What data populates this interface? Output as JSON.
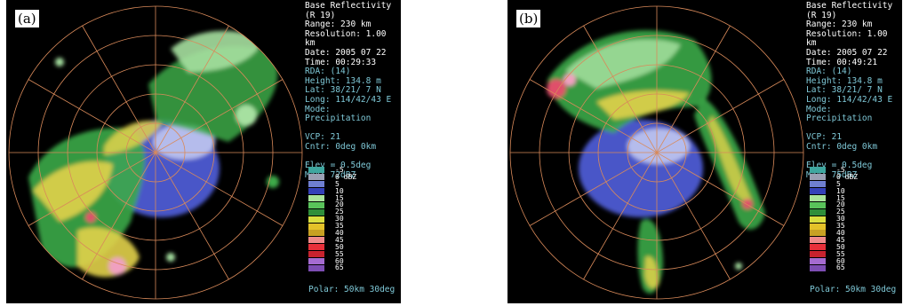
{
  "panels": [
    {
      "tag": "(a)",
      "lines": [
        "Base Reflectivity",
        "(R 19)",
        "Range: 230 km",
        "Resolution: 1.00 km",
        "Date: 2005 07 22",
        "Time: 00:29:33"
      ],
      "site": [
        "RDA: (14)",
        "Height: 134.8 m",
        "Lat: 38/21/ 7 N",
        "Long: 114/42/43 E",
        "Mode: Precipitation"
      ],
      "vcp": [
        "VCP: 21",
        "Cntr: 0deg 0km"
      ],
      "elev": [
        "Elev = 0.5deg",
        "Max: 72dBZ"
      ],
      "polar": "Polar: 50km 30deg"
    },
    {
      "tag": "(b)",
      "lines": [
        "Base Reflectivity",
        "(R 19)",
        "Range: 230 km",
        "Resolution: 1.00 km",
        "Date: 2005 07 22",
        "Time: 00:49:21"
      ],
      "site": [
        "RDA: (14)",
        "Height: 134.8 m",
        "Lat: 38/21/ 7 N",
        "Long: 114/42/43 E",
        "Mode: Precipitation"
      ],
      "vcp": [
        "VCP: 21",
        "Cntr: 0deg 0km"
      ],
      "elev": [
        "Elev = 0.5deg",
        "Max: 75dBZ"
      ],
      "polar": "Polar: 50km 30deg"
    }
  ],
  "legend": {
    "labels": [
      "-5",
      "0 dBZ",
      "5",
      "10",
      "15",
      "20",
      "25",
      "30",
      "35",
      "40",
      "45",
      "50",
      "55",
      "60",
      "65"
    ],
    "colors": [
      "#3fa7a0",
      "#9aa0b4",
      "#6f7fd0",
      "#3440b8",
      "#a9e39a",
      "#59c35a",
      "#2f8f3a",
      "#d9e040",
      "#e4c229",
      "#c8a123",
      "#f08a8a",
      "#e8303a",
      "#c8222e",
      "#a56bd0",
      "#7d4db3"
    ]
  },
  "colors": {
    "rings": "#d98a5a",
    "light_blue": "#b5bcec",
    "blue": "#4a56c8",
    "green_light": "#a6e0a0",
    "green": "#3caa48",
    "yellow": "#e2d24a",
    "red": "#e0506a",
    "pink": "#f0a0c0"
  }
}
